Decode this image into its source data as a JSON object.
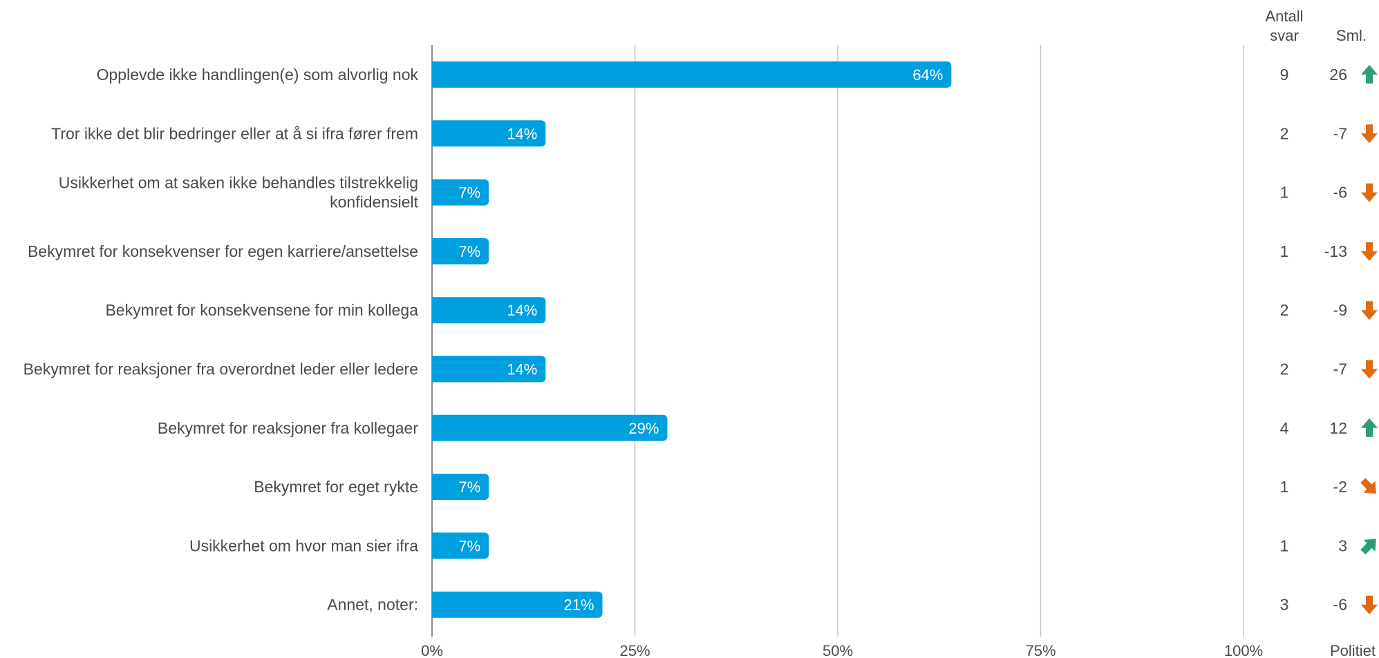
{
  "chart_data": {
    "type": "bar",
    "orientation": "horizontal",
    "categories": [
      "Opplevde ikke handlingen(e) som alvorlig nok",
      "Tror ikke det blir bedringer eller at å si ifra fører frem",
      "Usikkerhet om at saken ikke behandles tilstrekkelig\nkonfidensielt",
      "Bekymret for konsekvenser for egen karriere/ansettelse",
      "Bekymret for konsekvensene for min kollega",
      "Bekymret for reaksjoner fra overordnet leder eller ledere",
      "Bekymret for reaksjoner fra kollegaer",
      "Bekymret for eget rykte",
      "Usikkerhet om hvor man sier ifra",
      "Annet, noter:"
    ],
    "values": [
      64,
      14,
      7,
      7,
      14,
      14,
      29,
      7,
      7,
      21
    ],
    "value_labels": [
      "64%",
      "14%",
      "7%",
      "7%",
      "14%",
      "14%",
      "29%",
      "7%",
      "7%",
      "21%"
    ],
    "xlim": [
      0,
      100
    ],
    "x_ticks": [
      0,
      25,
      50,
      75,
      100
    ],
    "x_tick_labels": [
      "0%",
      "25%",
      "50%",
      "75%",
      "100%"
    ],
    "grid": true,
    "bar_color": "#009fdf",
    "columns": {
      "count_header": [
        "Antall",
        "svar"
      ],
      "diff_header": "Sml.",
      "comparison_group": "Politiet",
      "counts": [
        "9",
        "2",
        "1",
        "1",
        "2",
        "2",
        "4",
        "1",
        "1",
        "3"
      ],
      "diffs": [
        "26",
        "-7",
        "-6",
        "-13",
        "-9",
        "-7",
        "12",
        "-2",
        "3",
        "-6"
      ],
      "arrows": [
        "arrow-up-icon",
        "arrow-down-icon",
        "arrow-down-icon",
        "arrow-down-icon",
        "arrow-down-icon",
        "arrow-down-icon",
        "arrow-up-icon",
        "arrow-down-right-icon",
        "arrow-up-right-icon",
        "arrow-down-icon"
      ],
      "up_color": "#2e9e78",
      "down_color": "#e06a10"
    }
  }
}
